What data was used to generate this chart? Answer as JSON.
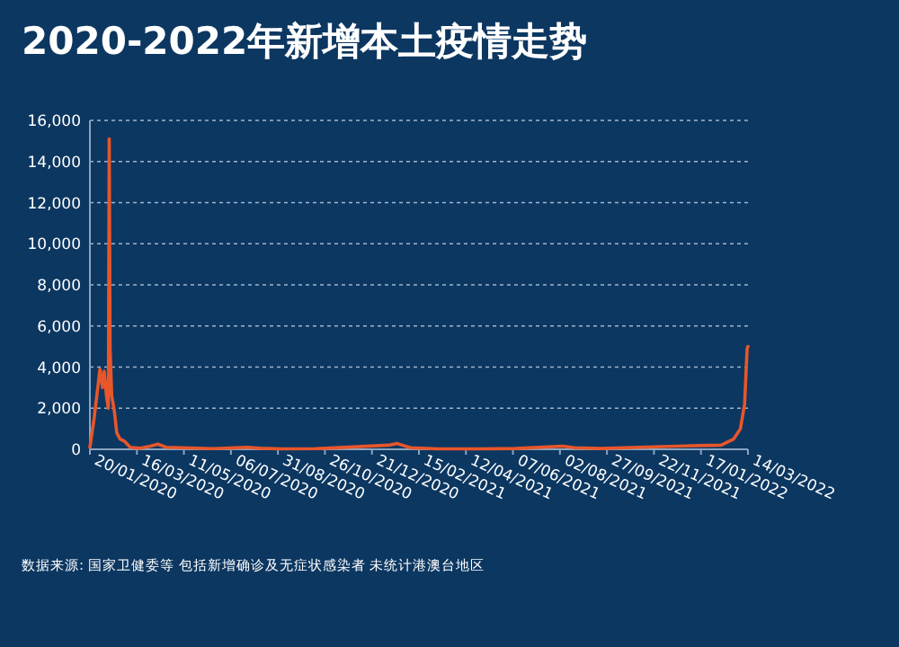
{
  "chart_data": {
    "type": "line",
    "title": "2020-2022年新增本土疫情走势",
    "annotations": [
      "数据来源: 国家卫健委等 包括新增确诊及无症状感染者 未统计港澳台地区"
    ],
    "x": [
      "2020-01-20",
      "2020-01-25",
      "2020-01-30",
      "2020-02-01",
      "2020-02-04",
      "2020-02-06",
      "2020-02-09",
      "2020-02-11",
      "2020-02-12",
      "2020-02-13",
      "2020-02-15",
      "2020-02-18",
      "2020-02-21",
      "2020-02-25",
      "2020-03-01",
      "2020-03-08",
      "2020-03-20",
      "2020-04-01",
      "2020-04-10",
      "2020-04-20",
      "2020-06-15",
      "2020-07-25",
      "2020-08-10",
      "2020-09-05",
      "2020-10-15",
      "2020-11-01",
      "2021-01-10",
      "2021-01-20",
      "2021-02-05",
      "2021-03-10",
      "2021-05-01",
      "2021-06-10",
      "2021-08-05",
      "2021-08-20",
      "2021-09-20",
      "2021-11-05",
      "2021-12-20",
      "2022-01-15",
      "2022-02-10",
      "2022-02-25",
      "2022-03-05",
      "2022-03-10",
      "2022-03-13",
      "2022-03-14"
    ],
    "series": [
      {
        "color": "#e8562a",
        "values": [
          100,
          1500,
          3200,
          3900,
          3000,
          3800,
          2500,
          2000,
          15100,
          5000,
          2600,
          1900,
          800,
          500,
          400,
          100,
          50,
          150,
          250,
          100,
          30,
          100,
          50,
          20,
          30,
          60,
          200,
          280,
          80,
          20,
          20,
          40,
          150,
          80,
          40,
          100,
          150,
          180,
          200,
          500,
          1000,
          2200,
          4900,
          5000
        ]
      }
    ],
    "xlim": [
      "2020-01-20",
      "2022-03-14"
    ],
    "xticks": [
      {
        "value": "2020-01-20",
        "label": "20/01/2020"
      },
      {
        "value": "2020-03-16",
        "label": "16/03/2020"
      },
      {
        "value": "2020-05-11",
        "label": "11/05/2020"
      },
      {
        "value": "2020-07-06",
        "label": "06/07/2020"
      },
      {
        "value": "2020-08-31",
        "label": "31/08/2020"
      },
      {
        "value": "2020-10-26",
        "label": "26/10/2020"
      },
      {
        "value": "2020-12-21",
        "label": "21/12/2020"
      },
      {
        "value": "2021-02-15",
        "label": "15/02/2021"
      },
      {
        "value": "2021-04-12",
        "label": "12/04/2021"
      },
      {
        "value": "2021-06-07",
        "label": "07/06/2021"
      },
      {
        "value": "2021-08-02",
        "label": "02/08/2021"
      },
      {
        "value": "2021-09-27",
        "label": "27/09/2021"
      },
      {
        "value": "2021-11-22",
        "label": "22/11/2021"
      },
      {
        "value": "2022-01-17",
        "label": "17/01/2022"
      },
      {
        "value": "2022-03-14",
        "label": "14/03/2022"
      }
    ],
    "ylim": [
      0,
      16000
    ],
    "yticks": [
      0,
      {
        "value": 2000,
        "label": "2,000"
      },
      {
        "value": 4000,
        "label": "4,000"
      },
      {
        "value": 6000,
        "label": "6,000"
      },
      {
        "value": 8000,
        "label": "8,000"
      },
      {
        "value": 10000,
        "label": "10,000"
      },
      {
        "value": 12000,
        "label": "12,000"
      },
      {
        "value": 14000,
        "label": "14,000"
      },
      {
        "value": 16000,
        "label": "16,000"
      }
    ],
    "grid": "y",
    "line_style": "solid",
    "marker": "none"
  }
}
